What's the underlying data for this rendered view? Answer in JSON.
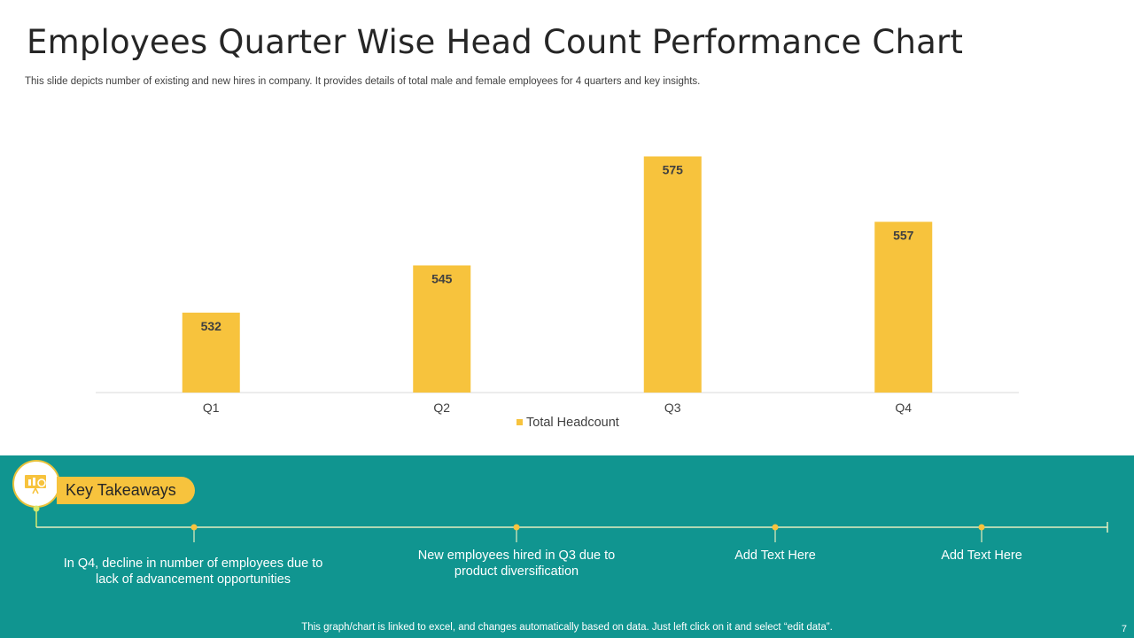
{
  "slide": {
    "title": "Employees Quarter Wise Head Count Performance Chart",
    "subtitle": "This slide depicts number of existing and new hires in company. It provides details of total male and female employees for 4 quarters and key insights.",
    "page_number": "7",
    "footer_note": "This graph/chart is linked to excel, and changes automatically based on data. Just left click on it and select “edit data”."
  },
  "chart_data": {
    "type": "bar",
    "categories": [
      "Q1",
      "Q2",
      "Q3",
      "Q4"
    ],
    "series": [
      {
        "name": "Total Headcount",
        "values": [
          532,
          545,
          575,
          557
        ],
        "color": "#f7c33d"
      }
    ],
    "ylim": [
      510,
      580
    ],
    "grid": false,
    "legend_position": "bottom",
    "data_labels": true
  },
  "takeaways": {
    "heading": "Key Takeaways",
    "icon": "presentation-chart-icon",
    "items": [
      "In Q4, decline in number of employees due to lack of advancement opportunities",
      "New employees hired in Q3 due to product diversification",
      "Add Text Here",
      "Add Text Here"
    ]
  },
  "colors": {
    "accent_yellow": "#f7c33d",
    "teal": "#109590",
    "title_text": "#262626"
  }
}
